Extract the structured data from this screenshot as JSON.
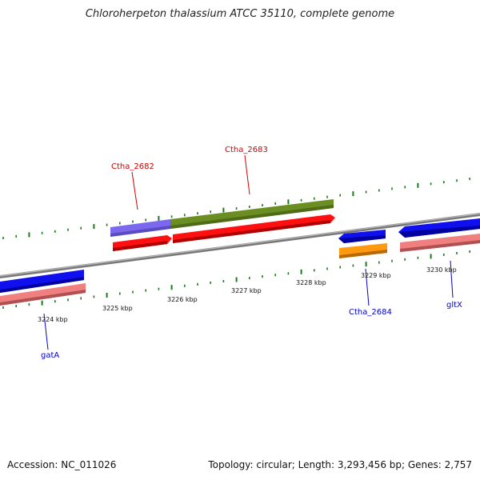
{
  "title": "Chloroherpeton thalassium ATCC 35110, complete genome",
  "footer": {
    "accession": "Accession: NC_011026",
    "summary": "Topology: circular; Length: 3,293,456 bp; Genes: 2,757"
  },
  "colors": {
    "backbone": "#888888",
    "tick": "#1a7a1a",
    "cds_forward": "#ff1010",
    "cds_reverse": "#1010ee",
    "gene_forward_bar": "#6b8e23",
    "gene_purple_bar": "#7b68ee",
    "gene_pink_bar": "#f08080",
    "gene_orange_bar": "#ff9a10",
    "label_red": "#cc0000",
    "label_blue": "#0000cc"
  },
  "scale_labels": [
    "3224 kbp",
    "3225 kbp",
    "3226 kbp",
    "3227 kbp",
    "3228 kbp",
    "3229 kbp",
    "3230 kbp"
  ],
  "gene_labels": [
    {
      "text": "Ctha_2682",
      "color": "red"
    },
    {
      "text": "Ctha_2683",
      "color": "red"
    },
    {
      "text": "Ctha_2684",
      "color": "blue"
    },
    {
      "text": "gatA",
      "color": "blue"
    },
    {
      "text": "gltX",
      "color": "blue"
    }
  ]
}
